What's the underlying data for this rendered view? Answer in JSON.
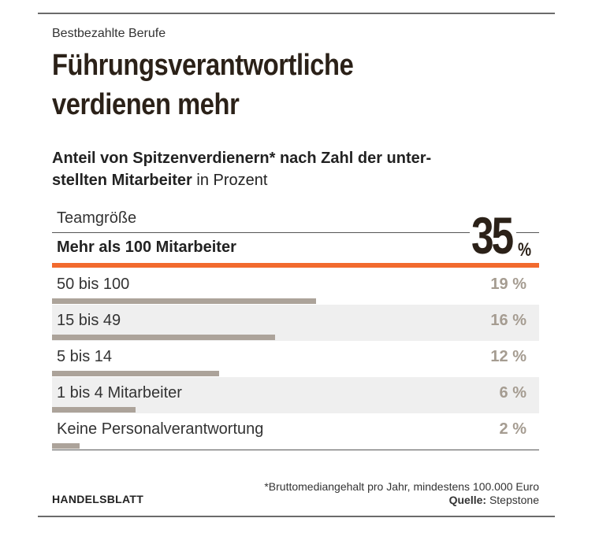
{
  "overline": "Bestbezahlte Berufe",
  "headline_line1": "Führungsverantwortliche",
  "headline_line2": "verdienen mehr",
  "subtitle_bold_line1": "Anteil von Spitzenverdienern* nach Zahl der unter-",
  "subtitle_bold_line2": "stellten Mitarbeiter",
  "subtitle_rest": " in Prozent",
  "accent_color": "#f26a2e",
  "bar_color": "#aca39a",
  "chart_data": {
    "type": "bar",
    "orientation": "horizontal",
    "column_header": "Teamgröße",
    "categories": [
      "Mehr als 100 Mitarbeiter",
      "50 bis 100",
      "15 bis 49",
      "5 bis 14",
      "1 bis 4 Mitarbeiter",
      "Keine Personalverantwortung"
    ],
    "values": [
      35,
      19,
      16,
      12,
      6,
      2
    ],
    "value_labels": [
      "35",
      "19 %",
      "16 %",
      "12 %",
      "6 %",
      "2 %"
    ],
    "highlight": {
      "value": "35",
      "unit": "%"
    },
    "xlim": [
      0,
      35
    ],
    "unit": "Prozent"
  },
  "footnote": "*Bruttomediangehalt pro Jahr, mindestens 100.000 Euro",
  "source_label": "Quelle:",
  "source_value": " Stepstone",
  "brand": "HANDELSBLATT"
}
